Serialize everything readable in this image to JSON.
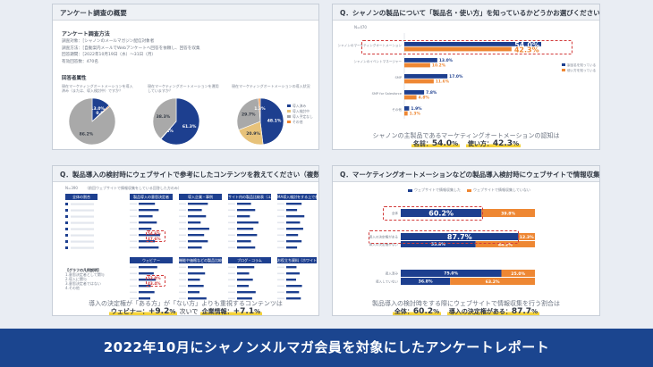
{
  "panel_tl": {
    "title": "アンケート調査の概要",
    "method_heading": "アンケート調査方法",
    "method_lines": [
      "調査対象：［シャノンのメールマガジン配信対象者",
      "調査方法：［自動案内メールでWebアンケートへ回答を依頼し、回答を収集",
      "回答期間：［2022年10月19日（水）～31日（月）",
      "有効回答数：470名"
    ],
    "attr_heading": "回答者属性",
    "pie_captions": [
      "現在マーケティングオートメーションを導入済み（または、導入検討中）ですか？",
      "現在マーケティングオートメーションを運用していますか？",
      "現在マーケティングオートメーションの導入状況"
    ],
    "pies": [
      {
        "values": [
          13.0,
          0.8,
          86.2
        ],
        "labels": [
          "13.0%",
          "0.8%",
          "86.2%"
        ],
        "colors": [
          "#1d3f8f",
          "#ee8733",
          "#a9a9a9"
        ]
      },
      {
        "values": [
          61.3,
          0.4,
          38.3
        ],
        "labels": [
          "61.3%",
          "0.4%",
          "38.3%"
        ],
        "colors": [
          "#1d3f8f",
          "#ee8733",
          "#a9a9a9"
        ]
      },
      {
        "values": [
          48.1,
          20.9,
          29.7,
          1.3
        ],
        "labels": [
          "48.1%",
          "20.9%",
          "29.7%",
          "1.3%"
        ],
        "colors": [
          "#1d3f8f",
          "#e7c27a",
          "#a9a9a9",
          "#ee8733"
        ]
      }
    ],
    "pie3_legend": [
      "導入済み",
      "導入検討中",
      "導入予定なし",
      "その他"
    ]
  },
  "panel_tr": {
    "title": "Q．シャノンの製品について「製品名・使い方」を知っているかどうかお選びください（複数選択可）",
    "n_label": "N=470",
    "chart_data": {
      "type": "bar",
      "categories": [
        "シャノンのマーケティングオートメーション",
        "シャノンのイベントマネージャー",
        "SMP",
        "SMP for Salesforce",
        "その他"
      ],
      "series": [
        {
          "name": "製品名を知っている",
          "values": [
            54.0,
            13.0,
            17.0,
            7.8,
            1.9
          ]
        },
        {
          "name": "使い方を知っている",
          "values": [
            42.3,
            10.2,
            11.6,
            4.8,
            1.3
          ]
        }
      ],
      "value_labels": [
        [
          "54.0%",
          "13.0%",
          "17.0%",
          "7.8%",
          "1.9%"
        ],
        [
          "42.3%",
          "10.2%",
          "11.6%",
          "4.8%",
          "1.3%"
        ]
      ],
      "xlim": [
        0,
        60
      ]
    },
    "legend": [
      "製品名を知っている",
      "使い方を知っている"
    ],
    "caption": "シャノンの主製品であるマーケティングオートメーションの認知は",
    "highlight_prefix1": "名前：",
    "highlight_value1": "54.0",
    "highlight_unit1": "%",
    "highlight_prefix2": "使い方：",
    "highlight_value2": "42.3",
    "highlight_unit2": "%"
  },
  "panel_bl": {
    "title": "Q．製品導入の検討時にウェブサイトで参考にしたコンテンツを教えてください（複数選択可）",
    "n_label": "N=390",
    "subtitle": "（前回ウェブサイトで情報収集をしている回答した方のみ）",
    "mini_titles": [
      "全体の割合",
      "製品導入の意思決定者",
      "導入企業・事例",
      "サイト内の製品比較表（ユーザー同士の評価）",
      "MA導入検討をする上で参考になる情報"
    ],
    "mini_titles2": [
      "ウェビナー",
      "機能や価格などの製品比較表",
      "ブログ・コラム",
      "お役立ち資料（ホワイトペーパー）"
    ],
    "highlight_values": [
      "54.6%",
      "47.6%",
      "52.0%",
      "43.4%"
    ],
    "left_legend_title": "【グラフの凡例説明】",
    "left_legend": [
      "1.意思決定者として関与",
      "2.導入に関与",
      "3.意思決定者ではない",
      "4.その他"
    ],
    "caption": "導入の決定権が「ある方」が「ない方」よりも重視するコンテンツは",
    "highlight_prefix1": "ウェビナー：",
    "highlight_value1": "+9.2",
    "highlight_unit1": "%",
    "mid_text": "次いで",
    "highlight_prefix2": "企業情報：",
    "highlight_value2": "+7.1",
    "highlight_unit2": "%"
  },
  "panel_br": {
    "title": "Q．マーケティングオートメーションなどの製品導入検討時にウェブサイトで情報収集をしましたか",
    "legend": [
      "ウェブサイトで情報収集した",
      "ウェブサイトで情報収集していない"
    ],
    "chart_data": {
      "type": "bar",
      "categories": [
        "全体",
        "導入の決定権がある",
        "導入の決定権がない",
        "導入済み",
        "導入していない"
      ],
      "series": [
        {
          "name": "ウェブサイトで情報収集した",
          "values": [
            60.2,
            87.7,
            55.8,
            75.0,
            36.8
          ]
        },
        {
          "name": "ウェブサイトで情報収集していない",
          "values": [
            39.8,
            12.3,
            44.2,
            25.0,
            63.2
          ]
        }
      ],
      "value_labels": [
        [
          "60.2%",
          "87.7%",
          "55.8%",
          "75.0%",
          "36.8%"
        ],
        [
          "39.8%",
          "12.3%",
          "44.2%",
          "25.0%",
          "63.2%"
        ]
      ],
      "xlim": [
        0,
        100
      ]
    },
    "caption": "製品導入の検討時をする際にウェブサイトで情報収集を行う割合は",
    "highlight_prefix1": "全体：",
    "highlight_value1": "60.2",
    "highlight_unit1": "%",
    "highlight_prefix2": "導入の決定権がある：",
    "highlight_value2": "87.7",
    "highlight_unit2": "%"
  },
  "footer": {
    "text": "2022年10月にシャノンメルマガ会員を対象にしたアンケートレポート"
  }
}
